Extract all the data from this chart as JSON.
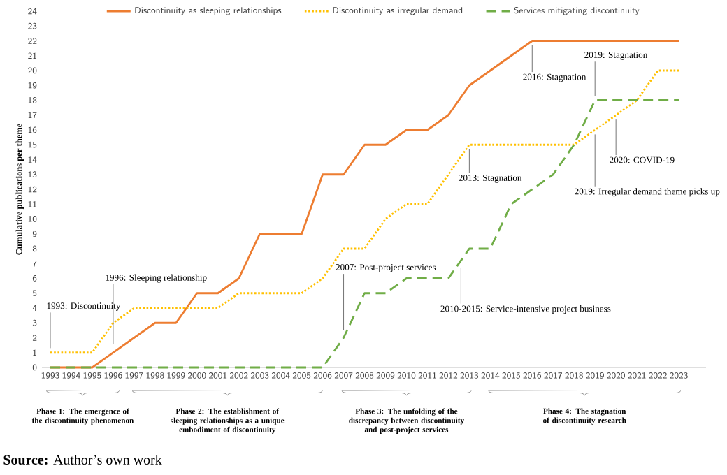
{
  "chart_data": {
    "type": "line",
    "ylabel": "Cumulative publications per theme",
    "x": [
      1993,
      1994,
      1995,
      1996,
      1997,
      1998,
      1999,
      2000,
      2001,
      2002,
      2003,
      2004,
      2005,
      2006,
      2007,
      2008,
      2009,
      2010,
      2011,
      2012,
      2013,
      2014,
      2015,
      2016,
      2017,
      2018,
      2019,
      2020,
      2021,
      2022,
      2023
    ],
    "series": [
      {
        "name": "Discontinuity as sleeping relationships",
        "color": "#ed7d31",
        "line_style": "solid",
        "values": [
          0,
          0,
          0,
          1,
          2,
          3,
          3,
          5,
          5,
          6,
          9,
          9,
          9,
          13,
          13,
          15,
          15,
          16,
          16,
          17,
          19,
          20,
          21,
          22,
          22,
          22,
          22,
          22,
          22,
          22,
          22
        ]
      },
      {
        "name": "Discontinuity as irregular demand",
        "color": "#ffc000",
        "line_style": "dotted",
        "values": [
          1,
          1,
          1,
          3,
          4,
          4,
          4,
          4,
          4,
          5,
          5,
          5,
          5,
          6,
          8,
          8,
          10,
          11,
          11,
          13,
          15,
          15,
          15,
          15,
          15,
          15,
          16,
          17,
          18,
          20,
          20
        ]
      },
      {
        "name": "Services mitigating discontinuity",
        "color": "#70ad47",
        "line_style": "dashed",
        "values": [
          0,
          0,
          0,
          0,
          0,
          0,
          0,
          0,
          0,
          0,
          0,
          0,
          0,
          0,
          2,
          5,
          5,
          6,
          6,
          6,
          8,
          8,
          11,
          12,
          13,
          15,
          18,
          18,
          18,
          18,
          18
        ]
      }
    ],
    "xlim": [
      1992.6,
      2024.3
    ],
    "ylim": [
      0,
      24
    ],
    "xticks": [
      1993,
      1994,
      1995,
      1996,
      1997,
      1998,
      1999,
      2000,
      2001,
      2002,
      2003,
      2004,
      2005,
      2006,
      2007,
      2008,
      2009,
      2010,
      2011,
      2012,
      2013,
      2014,
      2015,
      2016,
      2017,
      2018,
      2019,
      2020,
      2021,
      2022,
      2023
    ],
    "yticks": [
      0,
      1,
      2,
      3,
      4,
      5,
      6,
      7,
      8,
      9,
      10,
      11,
      12,
      13,
      14,
      15,
      16,
      17,
      18,
      19,
      20,
      21,
      22,
      23,
      24
    ],
    "grid": false,
    "legend": "top",
    "marker": "none",
    "annotations": [
      {
        "text": "1993: Discontinuity",
        "x": 1993,
        "y": 1
      },
      {
        "text": "1996: Sleeping relationship",
        "x": 1996,
        "y": 1
      },
      {
        "text": "2007: Post-project services",
        "x": 2007,
        "y": 2
      },
      {
        "text": "2010-2015: Service-intensive project business",
        "x": 2012.6,
        "y": 7
      },
      {
        "text": "2013: Stagnation",
        "x": 2013,
        "y": 15
      },
      {
        "text": "2016: Stagnation",
        "x": 2016,
        "y": 22
      },
      {
        "text": "2019: Stagnation",
        "x": 2019,
        "y": 18
      },
      {
        "text": "2020: COVID-19",
        "x": 2020,
        "y": 17
      },
      {
        "text": "2019: Irregular demand theme picks up",
        "x": 2019,
        "y": 16
      },
      "Phase 1: The emergence of the discontinuity phenomenon",
      "Phase 2: The establishment of sleeping relationships as a unique embodiment of discontinuity",
      "Phase 3: The unfolding of the discrepancy between discontinuity and post-project services",
      "Phase 4: The stagnation of discontinuity research",
      "**Source:** Author’s own work"
    ]
  }
}
